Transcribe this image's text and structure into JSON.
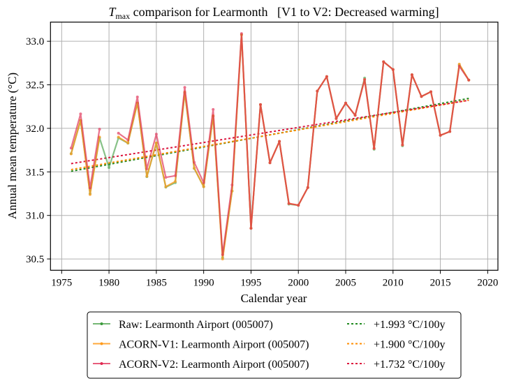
{
  "chart_data": {
    "type": "line",
    "title_main": "T",
    "title_sub": "max",
    "title_rest": " comparison for Learmonth   [V1 to V2: Decreased warming]",
    "xlabel": "Calendar year",
    "ylabel": "Annual mean temperature (°C)",
    "xlim": [
      1973.82,
      2021.08
    ],
    "ylim": [
      30.37,
      33.22
    ],
    "xticks": [
      1975,
      1980,
      1985,
      1990,
      1995,
      2000,
      2005,
      2010,
      2015,
      2020
    ],
    "yticks": [
      30.5,
      31.0,
      31.5,
      32.0,
      32.5,
      33.0
    ],
    "ytick_labels": [
      "30.5",
      "31.0",
      "31.5",
      "32.0",
      "32.5",
      "33.0"
    ],
    "grid": true,
    "legend_placement": "below",
    "x": [
      1976,
      1977,
      1978,
      1979,
      1980,
      1981,
      1982,
      1983,
      1984,
      1985,
      1986,
      1987,
      1988,
      1989,
      1990,
      1991,
      1992,
      1993,
      1994,
      1995,
      1996,
      1997,
      1998,
      1999,
      2000,
      2001,
      2002,
      2003,
      2004,
      2005,
      2006,
      2007,
      2008,
      2009,
      2010,
      2011,
      2012,
      2013,
      2014,
      2015,
      2016,
      2017,
      2018
    ],
    "series": [
      {
        "name": "Raw: Learmonth Airport (005007)",
        "color": "#3a9a3a",
        "alpha": 0.6,
        "values": [
          31.71,
          32.09,
          31.25,
          31.89,
          31.55,
          31.89,
          31.83,
          32.29,
          31.445,
          31.83,
          31.325,
          31.376,
          32.41,
          31.54,
          31.33,
          32.14,
          30.516,
          31.28,
          33.074,
          30.852,
          32.273,
          31.605,
          31.85,
          31.13,
          31.117,
          31.32,
          32.428,
          32.594,
          32.113,
          32.29,
          32.15,
          32.577,
          31.76,
          32.765,
          32.676,
          31.8,
          32.615,
          32.366,
          32.42,
          31.92,
          31.963,
          32.73,
          32.554
        ]
      },
      {
        "name": "ACORN-V1: Learmonth Airport (005007)",
        "color": "#ff9a1a",
        "alpha": 0.75,
        "values": [
          31.707,
          32.092,
          31.24,
          31.9,
          null,
          31.9,
          31.833,
          32.29,
          31.45,
          31.833,
          31.33,
          31.39,
          32.417,
          31.544,
          31.33,
          32.145,
          30.5,
          31.28,
          33.074,
          30.852,
          32.273,
          31.605,
          31.85,
          31.137,
          31.117,
          31.32,
          32.428,
          32.594,
          32.113,
          32.29,
          32.15,
          32.56,
          31.77,
          32.765,
          32.676,
          31.81,
          32.615,
          32.366,
          32.42,
          31.92,
          31.963,
          32.738,
          32.554
        ]
      },
      {
        "name": "ACORN-V2: Learmonth Airport (005007)",
        "color": "#e0284f",
        "alpha": 0.65,
        "values": [
          31.774,
          32.166,
          31.317,
          31.99,
          null,
          31.944,
          31.867,
          32.36,
          31.536,
          31.933,
          31.437,
          31.456,
          32.47,
          31.61,
          31.376,
          32.217,
          30.55,
          31.35,
          33.088,
          30.852,
          32.273,
          31.605,
          31.85,
          31.137,
          31.117,
          31.32,
          32.428,
          32.594,
          32.113,
          32.29,
          32.15,
          32.56,
          31.77,
          32.765,
          32.676,
          31.81,
          32.615,
          32.366,
          32.42,
          31.92,
          31.963,
          32.714,
          32.554
        ]
      }
    ],
    "trends": [
      {
        "label": "+1.993 °C/100y",
        "color": "#1f8a1f",
        "x": [
          1976,
          2018
        ],
        "y": [
          31.507,
          32.344
        ]
      },
      {
        "label": "+1.900 °C/100y",
        "color": "#ff8c00",
        "x": [
          1976,
          2018
        ],
        "y": [
          31.526,
          32.324
        ]
      },
      {
        "label": "+1.732 °C/100y",
        "color": "#dc143c",
        "x": [
          1976,
          2018
        ],
        "y": [
          31.595,
          32.322
        ]
      }
    ]
  }
}
